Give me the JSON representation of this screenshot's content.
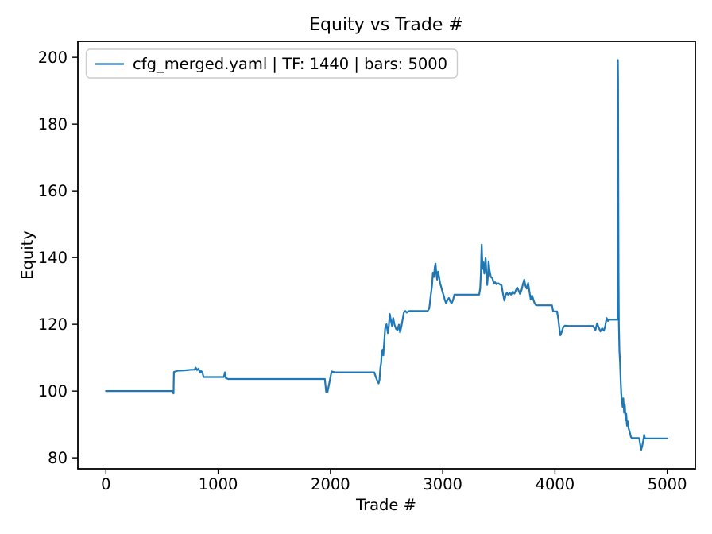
{
  "figure": {
    "background": "#ffffff",
    "text_color": "#000000",
    "spine_color": "#000000"
  },
  "chart_data": {
    "type": "line",
    "title": "Equity vs Trade #",
    "xlabel": "Trade #",
    "ylabel": "Equity",
    "xlim": [
      -250,
      5250
    ],
    "ylim": [
      76.7,
      204.8
    ],
    "xticks": [
      0,
      1000,
      2000,
      3000,
      4000,
      5000
    ],
    "yticks": [
      80,
      100,
      120,
      140,
      160,
      180,
      200
    ],
    "grid": false,
    "legend": {
      "position": "upper left",
      "entries": [
        {
          "label": "cfg_merged.yaml | TF: 1440 | bars: 5000",
          "color": "#1f77b4"
        }
      ]
    },
    "series": [
      {
        "name": "cfg_merged.yaml | TF: 1440 | bars: 5000",
        "color": "#1f77b4",
        "points": [
          [
            0,
            100
          ],
          [
            595,
            100
          ],
          [
            602,
            99.3
          ],
          [
            606,
            105.7
          ],
          [
            640,
            106.1
          ],
          [
            700,
            106.2
          ],
          [
            760,
            106.4
          ],
          [
            790,
            106.4
          ],
          [
            800,
            107.0
          ],
          [
            812,
            106.3
          ],
          [
            825,
            106.7
          ],
          [
            838,
            105.5
          ],
          [
            848,
            106.0
          ],
          [
            860,
            105.5
          ],
          [
            870,
            104.2
          ],
          [
            1050,
            104.2
          ],
          [
            1060,
            105.6
          ],
          [
            1068,
            103.9
          ],
          [
            1090,
            103.6
          ],
          [
            1950,
            103.6
          ],
          [
            1962,
            99.7
          ],
          [
            1968,
            100.6
          ],
          [
            1974,
            99.8
          ],
          [
            1990,
            102.5
          ],
          [
            2010,
            105.9
          ],
          [
            2040,
            105.6
          ],
          [
            2390,
            105.6
          ],
          [
            2405,
            104.1
          ],
          [
            2420,
            102.9
          ],
          [
            2429,
            102.3
          ],
          [
            2437,
            103.4
          ],
          [
            2445,
            107
          ],
          [
            2452,
            108.5
          ],
          [
            2457,
            111.7
          ],
          [
            2464,
            112.4
          ],
          [
            2471,
            110.7
          ],
          [
            2479,
            114.5
          ],
          [
            2487,
            118.8
          ],
          [
            2499,
            120.0
          ],
          [
            2511,
            117.4
          ],
          [
            2519,
            119.2
          ],
          [
            2528,
            123.1
          ],
          [
            2538,
            121.2
          ],
          [
            2548,
            119.5
          ],
          [
            2559,
            121.9
          ],
          [
            2571,
            119.9
          ],
          [
            2584,
            118.6
          ],
          [
            2598,
            118.3
          ],
          [
            2609,
            119.9
          ],
          [
            2620,
            117.6
          ],
          [
            2631,
            119.2
          ],
          [
            2644,
            121.6
          ],
          [
            2655,
            123.7
          ],
          [
            2667,
            124.0
          ],
          [
            2680,
            123.5
          ],
          [
            2698,
            124.0
          ],
          [
            2866,
            124.0
          ],
          [
            2880,
            124.8
          ],
          [
            2893,
            128.5
          ],
          [
            2904,
            131.5
          ],
          [
            2913,
            135.5
          ],
          [
            2921,
            134.2
          ],
          [
            2929,
            137.0
          ],
          [
            2936,
            138.2
          ],
          [
            2943,
            135.2
          ],
          [
            2950,
            133.4
          ],
          [
            2958,
            135.8
          ],
          [
            2967,
            134.3
          ],
          [
            2977,
            132.2
          ],
          [
            2985,
            131.4
          ],
          [
            2999,
            129.6
          ],
          [
            3009,
            128.6
          ],
          [
            3019,
            127.3
          ],
          [
            3030,
            126.3
          ],
          [
            3042,
            127.3
          ],
          [
            3055,
            127.9
          ],
          [
            3067,
            126.9
          ],
          [
            3078,
            126.3
          ],
          [
            3090,
            127.1
          ],
          [
            3104,
            128.9
          ],
          [
            3120,
            128.9
          ],
          [
            3325,
            128.9
          ],
          [
            3334,
            130.8
          ],
          [
            3340,
            135.5
          ],
          [
            3344,
            140.5
          ],
          [
            3347,
            143.9
          ],
          [
            3351,
            140.2
          ],
          [
            3356,
            136.6
          ],
          [
            3361,
            138.6
          ],
          [
            3366,
            137.1
          ],
          [
            3371,
            135.2
          ],
          [
            3377,
            138.1
          ],
          [
            3382,
            139.8
          ],
          [
            3389,
            135.3
          ],
          [
            3396,
            131.8
          ],
          [
            3403,
            134.8
          ],
          [
            3409,
            138.9
          ],
          [
            3417,
            136.2
          ],
          [
            3429,
            134.2
          ],
          [
            3443,
            133.8
          ],
          [
            3455,
            132.3
          ],
          [
            3466,
            132.6
          ],
          [
            3479,
            132.0
          ],
          [
            3495,
            132.3
          ],
          [
            3512,
            131.9
          ],
          [
            3524,
            131.7
          ],
          [
            3534,
            129.6
          ],
          [
            3549,
            127.1
          ],
          [
            3561,
            128.8
          ],
          [
            3572,
            129.5
          ],
          [
            3584,
            128.8
          ],
          [
            3597,
            129.4
          ],
          [
            3609,
            128.9
          ],
          [
            3624,
            129.8
          ],
          [
            3639,
            129.2
          ],
          [
            3652,
            130.2
          ],
          [
            3664,
            131.0
          ],
          [
            3677,
            130.0
          ],
          [
            3690,
            129.0
          ],
          [
            3704,
            130.5
          ],
          [
            3714,
            132.0
          ],
          [
            3726,
            133.4
          ],
          [
            3737,
            131.5
          ],
          [
            3749,
            130.7
          ],
          [
            3761,
            132.4
          ],
          [
            3771,
            130.0
          ],
          [
            3784,
            127.4
          ],
          [
            3796,
            128.6
          ],
          [
            3807,
            127.5
          ],
          [
            3819,
            126.3
          ],
          [
            3830,
            125.8
          ],
          [
            3840,
            125.7
          ],
          [
            3973,
            125.7
          ],
          [
            3984,
            123.9
          ],
          [
            4018,
            123.9
          ],
          [
            4030,
            121.5
          ],
          [
            4040,
            118.5
          ],
          [
            4048,
            116.7
          ],
          [
            4058,
            117.5
          ],
          [
            4072,
            119.0
          ],
          [
            4088,
            119.6
          ],
          [
            4120,
            119.5
          ],
          [
            4340,
            119.5
          ],
          [
            4360,
            118.3
          ],
          [
            4375,
            120.3
          ],
          [
            4390,
            119.0
          ],
          [
            4405,
            117.9
          ],
          [
            4420,
            118.8
          ],
          [
            4435,
            118.1
          ],
          [
            4448,
            119.5
          ],
          [
            4460,
            121.9
          ],
          [
            4472,
            121.0
          ],
          [
            4483,
            121.4
          ],
          [
            4548,
            121.4
          ],
          [
            4557,
            121.4
          ],
          [
            4560,
            199.2
          ],
          [
            4562,
            193
          ],
          [
            4564,
            160
          ],
          [
            4566,
            135
          ],
          [
            4569,
            120
          ],
          [
            4574,
            112
          ],
          [
            4580,
            108.5
          ],
          [
            4585,
            103
          ],
          [
            4590,
            99.2
          ],
          [
            4596,
            97.2
          ],
          [
            4602,
            95.3
          ],
          [
            4609,
            97.8
          ],
          [
            4616,
            93.5
          ],
          [
            4622,
            95.8
          ],
          [
            4629,
            91.2
          ],
          [
            4635,
            93.2
          ],
          [
            4641,
            89.6
          ],
          [
            4649,
            90.9
          ],
          [
            4657,
            88.7
          ],
          [
            4667,
            87.6
          ],
          [
            4676,
            86.3
          ],
          [
            4684,
            85.9
          ],
          [
            4750,
            85.9
          ],
          [
            4760,
            83.8
          ],
          [
            4768,
            82.4
          ],
          [
            4776,
            83.4
          ],
          [
            4786,
            85.0
          ],
          [
            4794,
            86.9
          ],
          [
            4802,
            85.8
          ],
          [
            5000,
            85.8
          ]
        ]
      }
    ]
  }
}
